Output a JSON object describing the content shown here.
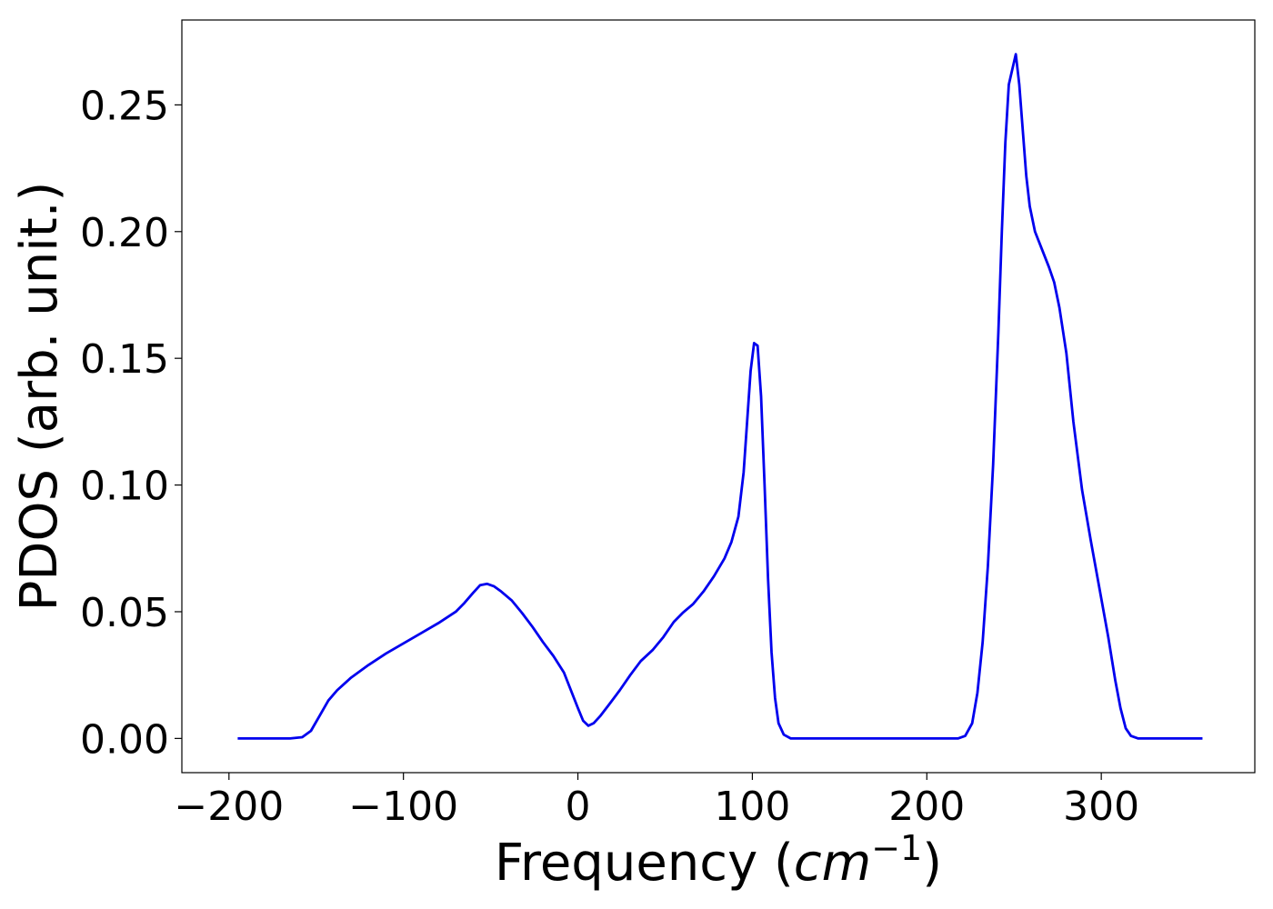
{
  "chart_data": {
    "type": "line",
    "xlabel": "Frequency (",
    "xlabel_math": "cm",
    "xlabel_sup": "−1",
    "xlabel_close": ")",
    "ylabel": "PDOS (arb. unit.)",
    "xlim": [
      -227,
      388
    ],
    "ylim": [
      -0.0135,
      0.2835
    ],
    "grid": false,
    "legend": "none",
    "xticks": [
      -200,
      -100,
      0,
      100,
      200,
      300
    ],
    "xtick_labels": [
      "−200",
      "−100",
      "0",
      "100",
      "200",
      "300"
    ],
    "yticks": [
      0.0,
      0.05,
      0.1,
      0.15,
      0.2,
      0.25
    ],
    "ytick_labels": [
      "0.00",
      "0.05",
      "0.10",
      "0.15",
      "0.20",
      "0.25"
    ],
    "series": [
      {
        "color": "#0000ee",
        "points": [
          [
            -195,
            0.0
          ],
          [
            -180,
            0.0
          ],
          [
            -165,
            0.0
          ],
          [
            -158,
            0.0005
          ],
          [
            -153,
            0.003
          ],
          [
            -148,
            0.009
          ],
          [
            -143,
            0.015
          ],
          [
            -138,
            0.019
          ],
          [
            -130,
            0.024
          ],
          [
            -120,
            0.029
          ],
          [
            -110,
            0.0335
          ],
          [
            -100,
            0.0375
          ],
          [
            -90,
            0.0415
          ],
          [
            -80,
            0.0455
          ],
          [
            -70,
            0.05
          ],
          [
            -65,
            0.0535
          ],
          [
            -60,
            0.0575
          ],
          [
            -56,
            0.0605
          ],
          [
            -52,
            0.061
          ],
          [
            -48,
            0.06
          ],
          [
            -44,
            0.058
          ],
          [
            -38,
            0.0545
          ],
          [
            -32,
            0.0495
          ],
          [
            -26,
            0.044
          ],
          [
            -20,
            0.038
          ],
          [
            -14,
            0.0325
          ],
          [
            -8,
            0.026
          ],
          [
            -4,
            0.019
          ],
          [
            0,
            0.012
          ],
          [
            3,
            0.007
          ],
          [
            6,
            0.005
          ],
          [
            9,
            0.006
          ],
          [
            13,
            0.009
          ],
          [
            18,
            0.0135
          ],
          [
            24,
            0.019
          ],
          [
            30,
            0.025
          ],
          [
            36,
            0.0305
          ],
          [
            43,
            0.035
          ],
          [
            49,
            0.04
          ],
          [
            55,
            0.046
          ],
          [
            60,
            0.0495
          ],
          [
            66,
            0.053
          ],
          [
            72,
            0.058
          ],
          [
            78,
            0.064
          ],
          [
            84,
            0.071
          ],
          [
            88,
            0.0775
          ],
          [
            92,
            0.0875
          ],
          [
            95,
            0.105
          ],
          [
            97,
            0.125
          ],
          [
            99,
            0.145
          ],
          [
            101,
            0.156
          ],
          [
            103,
            0.155
          ],
          [
            105,
            0.135
          ],
          [
            107,
            0.1
          ],
          [
            109,
            0.063
          ],
          [
            111,
            0.034
          ],
          [
            113,
            0.016
          ],
          [
            115,
            0.006
          ],
          [
            118,
            0.0015
          ],
          [
            122,
            0.0
          ],
          [
            140,
            0.0
          ],
          [
            170,
            0.0
          ],
          [
            200,
            0.0
          ],
          [
            218,
            0.0
          ],
          [
            222,
            0.001
          ],
          [
            226,
            0.006
          ],
          [
            229,
            0.018
          ],
          [
            232,
            0.038
          ],
          [
            235,
            0.068
          ],
          [
            238,
            0.108
          ],
          [
            241,
            0.16
          ],
          [
            243,
            0.2
          ],
          [
            245,
            0.235
          ],
          [
            247,
            0.258
          ],
          [
            249,
            0.264
          ],
          [
            251,
            0.27
          ],
          [
            253,
            0.258
          ],
          [
            255,
            0.24
          ],
          [
            257,
            0.222
          ],
          [
            259,
            0.21
          ],
          [
            262,
            0.2
          ],
          [
            266,
            0.193
          ],
          [
            270,
            0.186
          ],
          [
            273,
            0.18
          ],
          [
            276,
            0.17
          ],
          [
            280,
            0.152
          ],
          [
            284,
            0.125
          ],
          [
            289,
            0.098
          ],
          [
            294,
            0.078
          ],
          [
            299,
            0.059
          ],
          [
            304,
            0.04
          ],
          [
            308,
            0.023
          ],
          [
            311,
            0.012
          ],
          [
            314,
            0.004
          ],
          [
            317,
            0.001
          ],
          [
            321,
            0.0
          ],
          [
            335,
            0.0
          ],
          [
            350,
            0.0
          ],
          [
            358,
            0.0
          ]
        ]
      }
    ]
  }
}
